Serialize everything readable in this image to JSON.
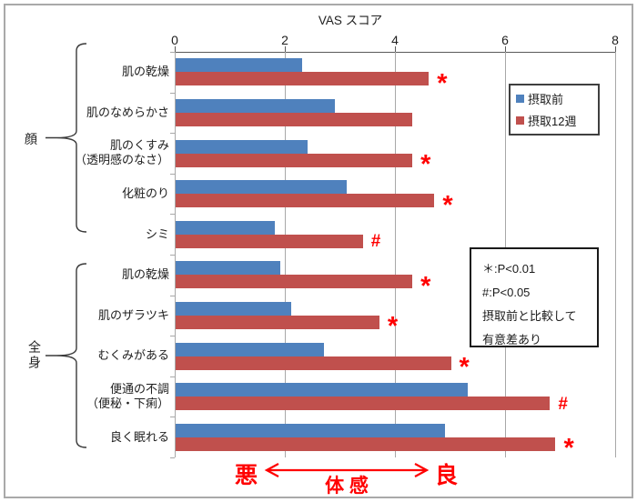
{
  "chart_data": {
    "type": "bar",
    "orientation": "horizontal",
    "title": "VAS スコア",
    "axis": {
      "min": 0,
      "max": 8,
      "ticks": [
        0,
        2,
        4,
        6,
        8
      ]
    },
    "categories": [
      {
        "lines": [
          "肌の乾燥"
        ]
      },
      {
        "lines": [
          "肌のなめらかさ"
        ]
      },
      {
        "lines": [
          "肌のくすみ",
          "（透明感のなさ）"
        ]
      },
      {
        "lines": [
          "化粧のり"
        ]
      },
      {
        "lines": [
          "シミ"
        ]
      },
      {
        "lines": [
          "肌の乾燥"
        ]
      },
      {
        "lines": [
          "肌のザラツキ"
        ]
      },
      {
        "lines": [
          "むくみがある"
        ]
      },
      {
        "lines": [
          "便通の不調",
          "（便秘・下痢）"
        ]
      },
      {
        "lines": [
          "良く眠れる"
        ]
      }
    ],
    "groups": [
      {
        "label": "顔",
        "from": 0,
        "to": 4
      },
      {
        "label": "全身",
        "from": 5,
        "to": 9
      }
    ],
    "series": [
      {
        "name": "摂取前",
        "color": "#4F81BD",
        "values": [
          2.3,
          2.9,
          2.4,
          3.1,
          1.8,
          1.9,
          2.1,
          2.7,
          5.3,
          4.9
        ]
      },
      {
        "name": "摂取12週",
        "color": "#C0504D",
        "values": [
          4.6,
          4.3,
          4.3,
          4.7,
          3.4,
          4.3,
          3.7,
          5.0,
          6.8,
          6.9
        ]
      }
    ],
    "significance_markers": [
      "*",
      "",
      "*",
      "*",
      "#",
      "*",
      "*",
      "*",
      "#",
      "*"
    ],
    "marker_color": "#FF0000"
  },
  "legend": {
    "items": [
      {
        "label": "摂取前",
        "color": "#4F81BD"
      },
      {
        "label": "摂取12週",
        "color": "#C0504D"
      }
    ]
  },
  "notes_box": {
    "lines": [
      "＊:P<0.01",
      "#:P<0.05",
      "摂取前と比較して",
      "有意差あり"
    ]
  },
  "footer_annotation": {
    "left": "悪",
    "center": "体 感",
    "right": "良",
    "color": "#FF0000"
  }
}
